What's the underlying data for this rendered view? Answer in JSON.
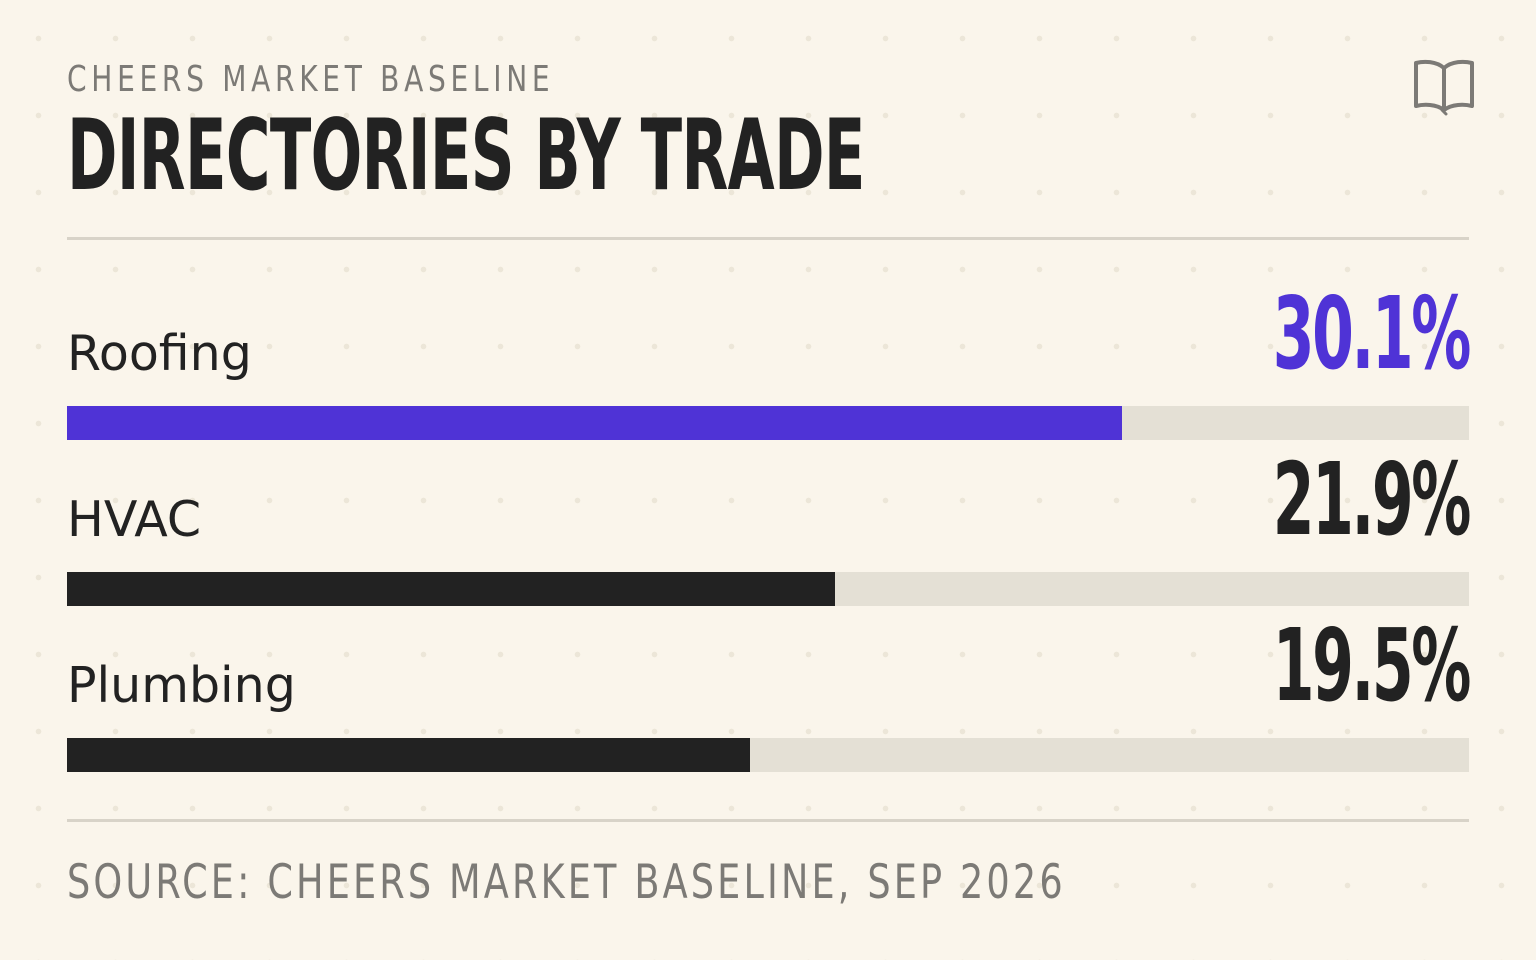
{
  "header": {
    "kicker": "CHEERS MARKET BASELINE",
    "title": "DIRECTORIES BY TRADE",
    "icon": "book-icon"
  },
  "footer": {
    "source": "SOURCE: CHEERS MARKET BASELINE, SEP 2026"
  },
  "colors": {
    "accent": "#4f33d6",
    "bar": "#222222",
    "track": "#e4e0d5",
    "background": "#faf5eb",
    "muted_text": "#7c7a76"
  },
  "chart_data": {
    "type": "bar",
    "orientation": "horizontal",
    "categories": [
      "Roofing",
      "HVAC",
      "Plumbing"
    ],
    "values": [
      30.1,
      21.9,
      19.5
    ],
    "value_labels": [
      "30.1%",
      "21.9%",
      "19.5%"
    ],
    "unit": "%",
    "title": "DIRECTORIES BY TRADE",
    "xlabel": "",
    "ylabel": "",
    "xlim": [
      0,
      40
    ],
    "highlighted_index": 0,
    "grid": false,
    "legend": "none"
  }
}
